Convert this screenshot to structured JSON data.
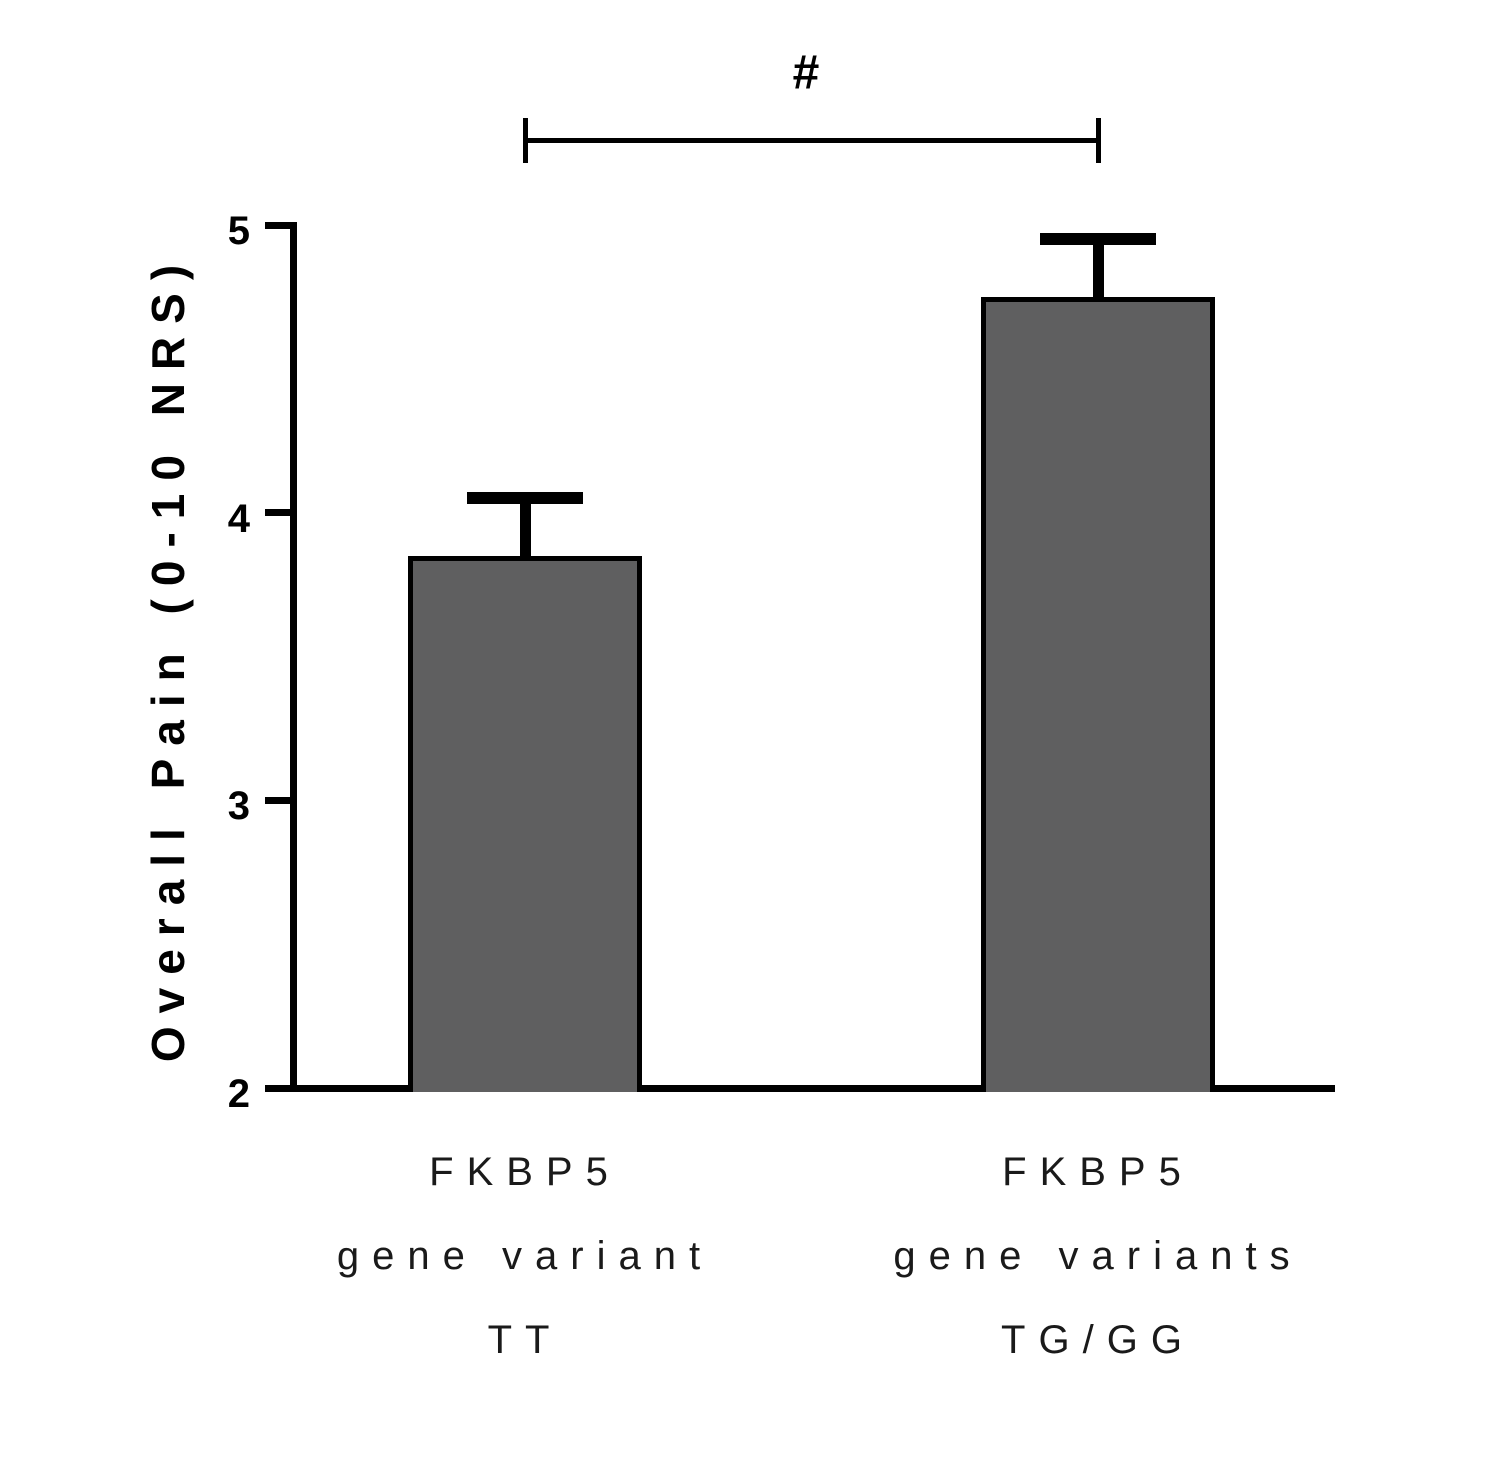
{
  "figure": {
    "background": "#ffffff"
  },
  "chart_data": {
    "type": "bar",
    "title": "",
    "xlabel": "",
    "ylabel": "Overall Pain (0-10 NRS)",
    "ylim": [
      2,
      5
    ],
    "yticks": [
      5,
      4,
      3,
      2
    ],
    "grid": false,
    "legend": false,
    "categories": [
      "FKBP5 gene variant TT",
      "FKBP5 gene variants TG/GG"
    ],
    "category_label_lines": [
      [
        "FKBP5",
        "gene variant",
        "TT"
      ],
      [
        "FKBP5",
        "gene variants",
        "TG/GG"
      ]
    ],
    "values": [
      3.85,
      4.75
    ],
    "errors_plus": [
      0.2,
      0.2
    ],
    "error_style": "upper whisker with cap",
    "bar_fill": "#5f5f60",
    "bar_border": "#000000",
    "axis_color": "#000000",
    "significance": {
      "symbol": "#",
      "between": [
        0,
        1
      ]
    }
  }
}
